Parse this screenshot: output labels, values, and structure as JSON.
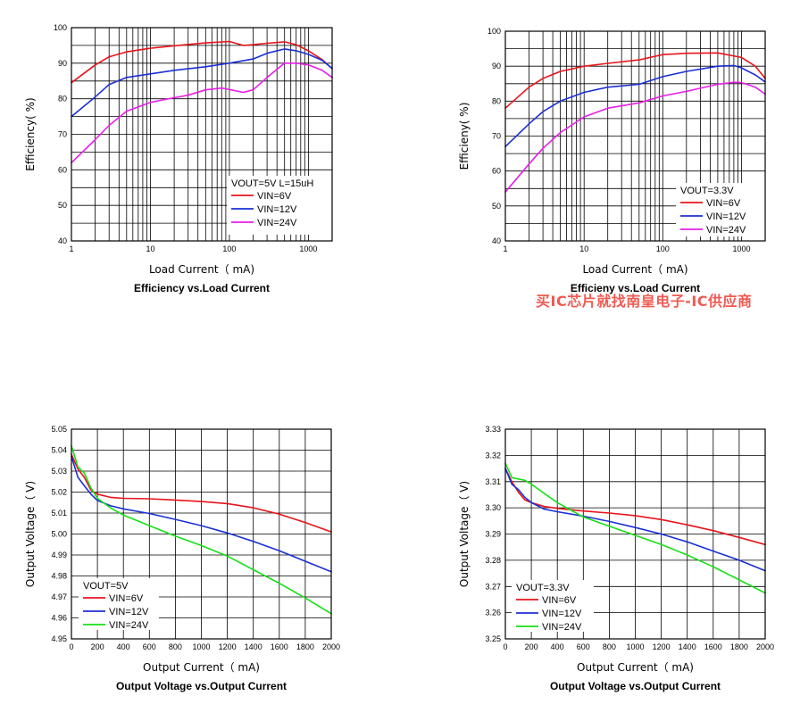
{
  "watermark": "买IC芯片就找南皇电子-IC供应商",
  "chart_data": [
    {
      "type": "line",
      "xscale": "log",
      "xlim": [
        1,
        2000
      ],
      "ylim": [
        40,
        100
      ],
      "xticks": [
        1,
        10,
        100,
        1000
      ],
      "xtick_labels": [
        "1",
        "10",
        "100",
        "1000"
      ],
      "yticks": [
        40,
        50,
        60,
        70,
        80,
        90,
        100
      ],
      "ytick_labels": [
        "40",
        "50",
        "60",
        "70",
        "80",
        "90",
        "100"
      ],
      "title": "Efficiency vs.Load Current",
      "xlabel": "Load Current（ mA)",
      "ylabel": "Efficiency( %)",
      "legend_title": "VOUT=5V L=15uH",
      "legend_position": "bottom-right",
      "grid": true,
      "series": [
        {
          "name": "VIN=6V",
          "color": "#e8141b",
          "x": [
            1,
            2,
            3,
            5,
            10,
            20,
            50,
            100,
            150,
            200,
            300,
            500,
            700,
            1000,
            1500,
            2000
          ],
          "y": [
            84.5,
            89.5,
            91.8,
            93.2,
            94.2,
            94.9,
            95.7,
            96.1,
            95.0,
            95.2,
            95.6,
            96.0,
            95.2,
            93.5,
            91.0,
            88.5
          ]
        },
        {
          "name": "VIN=12V",
          "color": "#1b2fd6",
          "x": [
            1,
            2,
            3,
            5,
            10,
            20,
            50,
            100,
            200,
            300,
            500,
            700,
            1000,
            1500,
            2000
          ],
          "y": [
            75,
            80.5,
            84,
            86,
            87,
            88,
            89,
            90,
            91.2,
            92.8,
            94.0,
            93.5,
            92.5,
            90.8,
            88.5
          ]
        },
        {
          "name": "VIN=24V",
          "color": "#e81ee8",
          "x": [
            1,
            2,
            3,
            5,
            10,
            20,
            30,
            50,
            80,
            100,
            150,
            200,
            300,
            500,
            700,
            1000,
            1500,
            2000
          ],
          "y": [
            62,
            68.5,
            72.5,
            76.5,
            79,
            80.3,
            81,
            82.5,
            83,
            82.6,
            81.8,
            82.5,
            86.0,
            90.0,
            90.0,
            89.5,
            88.0,
            86.0
          ]
        }
      ]
    },
    {
      "type": "line",
      "xscale": "log",
      "xlim": [
        1,
        2000
      ],
      "ylim": [
        40,
        100
      ],
      "xticks": [
        1,
        10,
        100,
        1000
      ],
      "xtick_labels": [
        "1",
        "10",
        "100",
        "1000"
      ],
      "yticks": [
        40,
        50,
        60,
        70,
        80,
        90,
        100
      ],
      "ytick_labels": [
        "40",
        "50",
        "60",
        "70",
        "80",
        "90",
        "100"
      ],
      "title": "Efficieny vs.Load Current",
      "xlabel": "Load Current（ mA)",
      "ylabel": "Efficieny( %)",
      "legend_title": "VOUT=3.3V",
      "legend_position": "bottom-right",
      "grid": true,
      "series": [
        {
          "name": "VIN=6V",
          "color": "#e8141b",
          "x": [
            1,
            2,
            3,
            5,
            10,
            20,
            50,
            100,
            200,
            500,
            1000,
            1500,
            2000
          ],
          "y": [
            78,
            84,
            86.5,
            88.5,
            90,
            90.8,
            91.8,
            93.3,
            93.7,
            93.8,
            92.5,
            90.0,
            86.5
          ]
        },
        {
          "name": "VIN=12V",
          "color": "#1b2fd6",
          "x": [
            1,
            2,
            3,
            5,
            10,
            20,
            50,
            100,
            200,
            500,
            800,
            1000,
            1500,
            2000
          ],
          "y": [
            67,
            73.5,
            77,
            80,
            82.5,
            84,
            84.8,
            87,
            88.5,
            90,
            90.2,
            89.5,
            87.5,
            85.5
          ]
        },
        {
          "name": "VIN=24V",
          "color": "#e81ee8",
          "x": [
            1,
            2,
            3,
            5,
            10,
            20,
            50,
            100,
            200,
            500,
            800,
            1000,
            1500,
            2000
          ],
          "y": [
            54,
            62,
            66.5,
            71,
            75.5,
            78,
            79.5,
            81.5,
            82.8,
            84.8,
            85.4,
            85.3,
            84.0,
            82.0
          ]
        }
      ]
    },
    {
      "type": "line",
      "xscale": "linear",
      "xlim": [
        0,
        2000
      ],
      "ylim": [
        4.95,
        5.05
      ],
      "xticks": [
        0,
        200,
        400,
        600,
        800,
        1000,
        1200,
        1400,
        1600,
        1800,
        2000
      ],
      "xtick_labels": [
        "0",
        "200",
        "400",
        "600",
        "800",
        "1000",
        "1200",
        "1400",
        "1600",
        "1800",
        "2000"
      ],
      "yticks": [
        4.95,
        4.96,
        4.97,
        4.98,
        4.99,
        5.0,
        5.01,
        5.02,
        5.03,
        5.04,
        5.05
      ],
      "ytick_labels": [
        "4.95",
        "4.96",
        "4.97",
        "4.98",
        "4.99",
        "5.00",
        "5.01",
        "5.02",
        "5.03",
        "5.04",
        "5.05"
      ],
      "title": "Output Voltage vs.Output Current",
      "xlabel": "Output Current（ mA)",
      "ylabel": "Output Voltage（ V)",
      "legend_title": "VOUT=5V",
      "legend_position": "bottom-left",
      "grid": true,
      "series": [
        {
          "name": "VIN=6V",
          "color": "#e8141b",
          "x": [
            0,
            50,
            100,
            150,
            200,
            300,
            400,
            600,
            800,
            1000,
            1200,
            1400,
            1600,
            1800,
            2000
          ],
          "y": [
            5.038,
            5.031,
            5.027,
            5.021,
            5.019,
            5.0175,
            5.017,
            5.0168,
            5.0162,
            5.0155,
            5.0145,
            5.0125,
            5.0095,
            5.0055,
            5.001
          ]
        },
        {
          "name": "VIN=12V",
          "color": "#1b2fd6",
          "x": [
            0,
            50,
            100,
            150,
            200,
            300,
            400,
            600,
            800,
            1000,
            1200,
            1400,
            1600,
            1800,
            2000
          ],
          "y": [
            5.037,
            5.027,
            5.023,
            5.019,
            5.016,
            5.0135,
            5.012,
            5.0098,
            5.007,
            5.004,
            5.0005,
            4.9965,
            4.992,
            4.987,
            4.982
          ]
        },
        {
          "name": "VIN=24V",
          "color": "#16e016",
          "x": [
            0,
            50,
            100,
            150,
            200,
            300,
            400,
            600,
            800,
            1000,
            1200,
            1400,
            1600,
            1800,
            2000
          ],
          "y": [
            5.042,
            5.032,
            5.029,
            5.022,
            5.017,
            5.0125,
            5.009,
            5.004,
            4.999,
            4.9945,
            4.9895,
            4.983,
            4.9765,
            4.9695,
            4.962
          ]
        }
      ]
    },
    {
      "type": "line",
      "xscale": "linear",
      "xlim": [
        0,
        2000
      ],
      "ylim": [
        3.25,
        3.33
      ],
      "xticks": [
        0,
        200,
        400,
        600,
        800,
        1000,
        1200,
        1400,
        1600,
        1800,
        2000
      ],
      "xtick_labels": [
        "0",
        "200",
        "400",
        "600",
        "800",
        "1000",
        "1200",
        "1400",
        "1600",
        "1800",
        "2000"
      ],
      "yticks": [
        3.25,
        3.26,
        3.27,
        3.28,
        3.29,
        3.3,
        3.31,
        3.32,
        3.33
      ],
      "ytick_labels": [
        "3.25",
        "3.26",
        "3.27",
        "3.28",
        "3.29",
        "3.30",
        "3.31",
        "3.32",
        "3.33"
      ],
      "title": "Output Voltage vs.Output Current",
      "xlabel": "Output Current（ mA)",
      "ylabel": "Output Voltage（ V)",
      "legend_title": "VOUT=3.3V",
      "legend_position": "bottom-left",
      "grid": true,
      "series": [
        {
          "name": "VIN=6V",
          "color": "#e8141b",
          "x": [
            0,
            50,
            100,
            150,
            200,
            300,
            400,
            600,
            800,
            1000,
            1200,
            1400,
            1600,
            1800,
            2000
          ],
          "y": [
            3.315,
            3.31,
            3.306,
            3.303,
            3.302,
            3.3005,
            3.2998,
            3.2988,
            3.298,
            3.297,
            3.2955,
            3.2935,
            3.2913,
            3.2887,
            3.286
          ]
        },
        {
          "name": "VIN=12V",
          "color": "#1b2fd6",
          "x": [
            0,
            50,
            100,
            150,
            200,
            300,
            400,
            600,
            800,
            1000,
            1200,
            1400,
            1600,
            1800,
            2000
          ],
          "y": [
            3.315,
            3.309,
            3.307,
            3.304,
            3.302,
            3.2995,
            3.2985,
            3.2968,
            3.2948,
            3.2925,
            3.29,
            3.287,
            3.2835,
            3.28,
            3.276
          ]
        },
        {
          "name": "VIN=24V",
          "color": "#16e016",
          "x": [
            0,
            50,
            100,
            150,
            200,
            300,
            400,
            600,
            800,
            1000,
            1200,
            1400,
            1600,
            1800,
            2000
          ],
          "y": [
            3.317,
            3.3115,
            3.311,
            3.3105,
            3.309,
            3.3055,
            3.302,
            3.2965,
            3.293,
            3.2895,
            3.286,
            3.282,
            3.2775,
            3.2725,
            3.2675
          ]
        }
      ]
    }
  ]
}
